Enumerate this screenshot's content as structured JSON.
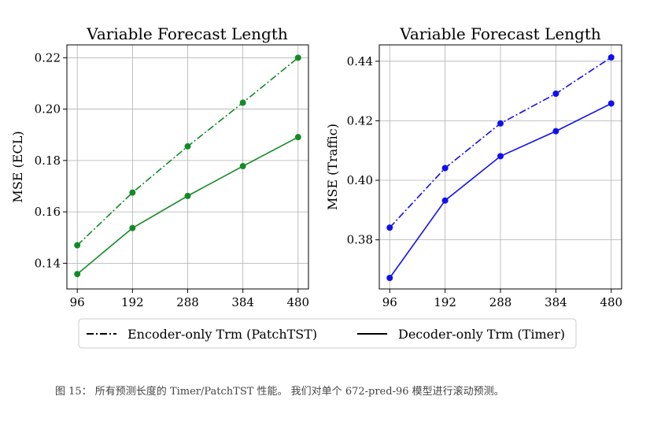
{
  "chart_data": [
    {
      "type": "line",
      "title": "Variable Forecast Length",
      "ylabel": "MSE (ECL)",
      "xlabel": "",
      "categories": [
        "96",
        "192",
        "288",
        "384",
        "480"
      ],
      "ylim": [
        0.13,
        0.225
      ],
      "yticks": [
        "0.14",
        "0.16",
        "0.18",
        "0.20",
        "0.22"
      ],
      "color": "#138a26",
      "grid": true,
      "series": [
        {
          "name": "Encoder-only Trm (PatchTST)",
          "style": "dashdot",
          "values": [
            0.147,
            0.1675,
            0.1855,
            0.2025,
            0.22
          ]
        },
        {
          "name": "Decoder-only Trm (Timer)",
          "style": "solid",
          "values": [
            0.1358,
            0.1537,
            0.1662,
            0.1778,
            0.1891
          ]
        }
      ]
    },
    {
      "type": "line",
      "title": "Variable Forecast Length",
      "ylabel": "MSE (Traffic)",
      "xlabel": "",
      "categories": [
        "96",
        "192",
        "288",
        "384",
        "480"
      ],
      "ylim": [
        0.3635,
        0.4455
      ],
      "yticks": [
        "0.38",
        "0.40",
        "0.42",
        "0.44"
      ],
      "color": "#1010ee",
      "grid": true,
      "series": [
        {
          "name": "Encoder-only Trm (PatchTST)",
          "style": "dashdot",
          "values": [
            0.3841,
            0.4041,
            0.4191,
            0.4291,
            0.4413
          ]
        },
        {
          "name": "Decoder-only Trm (Timer)",
          "style": "solid",
          "values": [
            0.3672,
            0.3932,
            0.4081,
            0.4165,
            0.4258
          ]
        }
      ]
    }
  ],
  "legend": {
    "placement": "bottom-center",
    "items": [
      {
        "label": "Encoder-only Trm (PatchTST)",
        "style": "dashdot"
      },
      {
        "label": "Decoder-only Trm (Timer)",
        "style": "solid"
      }
    ]
  },
  "caption": "图 15： 所有预测长度的 Timer/PatchTST 性能。 我们对单个 672-pred-96 模型进行滚动预测。"
}
